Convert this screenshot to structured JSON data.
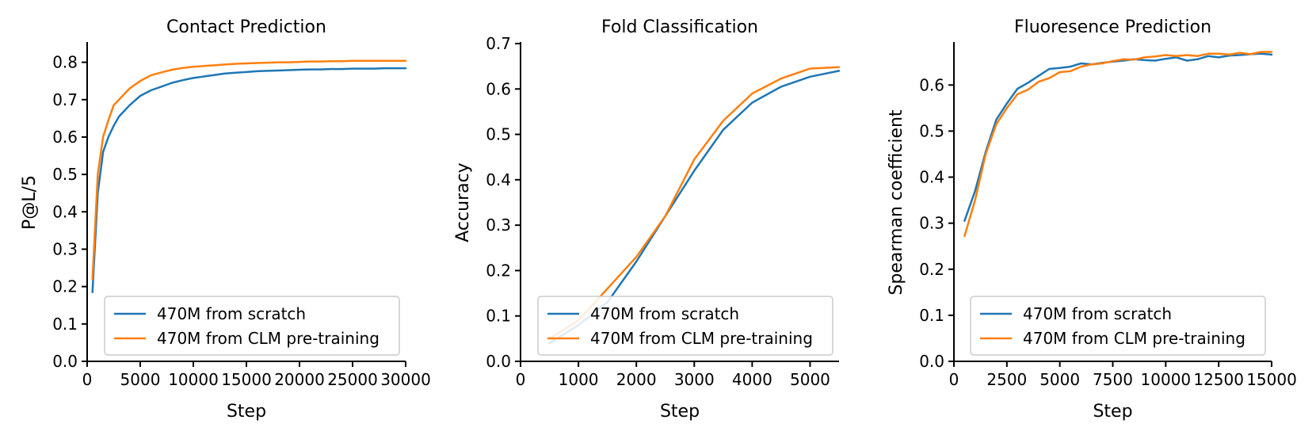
{
  "chart_data": [
    {
      "type": "line",
      "title": "Contact Prediction",
      "xlabel": "Step",
      "ylabel": "P@L/5",
      "xlim": [
        0,
        30000
      ],
      "ylim": [
        0,
        0.85
      ],
      "xticks": [
        0,
        5000,
        10000,
        15000,
        20000,
        25000,
        30000
      ],
      "xtick_labels": [
        "0",
        "5000",
        "10000",
        "15000",
        "20000",
        "25000",
        "30000"
      ],
      "yticks": [
        0,
        0.1,
        0.2,
        0.3,
        0.4,
        0.5,
        0.6,
        0.7,
        0.8
      ],
      "ytick_labels": [
        "0.0",
        "0.1",
        "0.2",
        "0.3",
        "0.4",
        "0.5",
        "0.6",
        "0.7",
        "0.8"
      ],
      "grid": false,
      "legend_position": "lower-right",
      "series": [
        {
          "name": "470M from scratch",
          "color": "#1f77b4",
          "x": [
            500,
            1000,
            1500,
            2000,
            2500,
            3000,
            3500,
            4000,
            5000,
            6000,
            7000,
            8000,
            9000,
            10000,
            11000,
            12000,
            13000,
            14000,
            15000,
            16000,
            17000,
            18000,
            19000,
            20000,
            21000,
            22000,
            23000,
            24000,
            25000,
            26000,
            27000,
            28000,
            29000,
            30000
          ],
          "y": [
            0.185,
            0.45,
            0.56,
            0.6,
            0.63,
            0.655,
            0.67,
            0.685,
            0.71,
            0.725,
            0.735,
            0.745,
            0.752,
            0.758,
            0.762,
            0.766,
            0.77,
            0.772,
            0.774,
            0.776,
            0.777,
            0.778,
            0.779,
            0.78,
            0.781,
            0.781,
            0.782,
            0.782,
            0.783,
            0.783,
            0.783,
            0.784,
            0.784,
            0.784
          ]
        },
        {
          "name": "470M from CLM pre-training",
          "color": "#ff7f0e",
          "x": [
            500,
            1000,
            1500,
            2000,
            2500,
            3000,
            3500,
            4000,
            5000,
            6000,
            7000,
            8000,
            9000,
            10000,
            11000,
            12000,
            13000,
            14000,
            15000,
            16000,
            17000,
            18000,
            19000,
            20000,
            21000,
            22000,
            23000,
            24000,
            25000,
            26000,
            27000,
            28000,
            29000,
            30000
          ],
          "y": [
            0.22,
            0.5,
            0.6,
            0.645,
            0.685,
            0.7,
            0.715,
            0.73,
            0.75,
            0.765,
            0.773,
            0.78,
            0.785,
            0.788,
            0.79,
            0.792,
            0.794,
            0.796,
            0.797,
            0.798,
            0.799,
            0.8,
            0.8,
            0.801,
            0.802,
            0.802,
            0.803,
            0.803,
            0.804,
            0.804,
            0.804,
            0.804,
            0.804,
            0.804
          ]
        }
      ]
    },
    {
      "type": "line",
      "title": "Fold Classification",
      "xlabel": "Step",
      "ylabel": "Accuracy",
      "xlim": [
        0,
        5500
      ],
      "ylim": [
        0,
        0.7
      ],
      "xticks": [
        0,
        1000,
        2000,
        3000,
        4000,
        5000
      ],
      "xtick_labels": [
        "0",
        "1000",
        "2000",
        "3000",
        "4000",
        "5000"
      ],
      "yticks": [
        0,
        0.1,
        0.2,
        0.3,
        0.4,
        0.5,
        0.6,
        0.7
      ],
      "ytick_labels": [
        "0.0",
        "0.1",
        "0.2",
        "0.3",
        "0.4",
        "0.5",
        "0.6",
        "0.7"
      ],
      "grid": false,
      "legend_position": "lower-right",
      "series": [
        {
          "name": "470M from scratch",
          "color": "#1f77b4",
          "x": [
            500,
            1000,
            1500,
            2000,
            2500,
            3000,
            3500,
            4000,
            4500,
            5000,
            5500
          ],
          "y": [
            0.04,
            0.08,
            0.13,
            0.22,
            0.32,
            0.42,
            0.51,
            0.57,
            0.605,
            0.627,
            0.64
          ]
        },
        {
          "name": "470M from CLM pre-training",
          "color": "#ff7f0e",
          "x": [
            500,
            1000,
            1500,
            2000,
            2500,
            3000,
            3500,
            4000,
            4500,
            5000,
            5500
          ],
          "y": [
            0.05,
            0.09,
            0.16,
            0.23,
            0.32,
            0.445,
            0.53,
            0.59,
            0.623,
            0.645,
            0.648
          ]
        }
      ]
    },
    {
      "type": "line",
      "title": "Fluoresence Prediction",
      "xlabel": "Step",
      "ylabel": "Spearman coefficient",
      "xlim": [
        0,
        15000
      ],
      "ylim": [
        0,
        0.69
      ],
      "xticks": [
        0,
        2500,
        5000,
        7500,
        10000,
        12500,
        15000
      ],
      "xtick_labels": [
        "0",
        "2500",
        "5000",
        "7500",
        "10000",
        "12500",
        "15000"
      ],
      "yticks": [
        0,
        0.1,
        0.2,
        0.3,
        0.4,
        0.5,
        0.6
      ],
      "ytick_labels": [
        "0.0",
        "0.1",
        "0.2",
        "0.3",
        "0.4",
        "0.5",
        "0.6"
      ],
      "grid": false,
      "legend_position": "lower-right",
      "series": [
        {
          "name": "470M from scratch",
          "color": "#1f77b4",
          "x": [
            500,
            1000,
            1500,
            2000,
            2500,
            3000,
            3500,
            4000,
            4500,
            5000,
            5500,
            6000,
            6500,
            7000,
            7500,
            8000,
            8500,
            9000,
            9500,
            10000,
            10500,
            11000,
            11500,
            12000,
            12500,
            13000,
            13500,
            14000,
            14500,
            15000
          ],
          "y": [
            0.305,
            0.37,
            0.455,
            0.525,
            0.56,
            0.592,
            0.605,
            0.62,
            0.635,
            0.637,
            0.64,
            0.647,
            0.645,
            0.648,
            0.651,
            0.653,
            0.656,
            0.654,
            0.653,
            0.657,
            0.66,
            0.653,
            0.656,
            0.663,
            0.66,
            0.664,
            0.665,
            0.667,
            0.668,
            0.666
          ]
        },
        {
          "name": "470M from CLM pre-training",
          "color": "#ff7f0e",
          "x": [
            500,
            1000,
            1500,
            2000,
            2500,
            3000,
            3500,
            4000,
            4500,
            5000,
            5500,
            6000,
            6500,
            7000,
            7500,
            8000,
            8500,
            9000,
            9500,
            10000,
            10500,
            11000,
            11500,
            12000,
            12500,
            13000,
            13500,
            14000,
            14500,
            15000
          ],
          "y": [
            0.272,
            0.35,
            0.45,
            0.515,
            0.55,
            0.58,
            0.59,
            0.607,
            0.615,
            0.628,
            0.63,
            0.64,
            0.645,
            0.647,
            0.652,
            0.656,
            0.655,
            0.66,
            0.662,
            0.665,
            0.663,
            0.665,
            0.663,
            0.668,
            0.668,
            0.666,
            0.67,
            0.667,
            0.672,
            0.672
          ]
        }
      ]
    }
  ]
}
